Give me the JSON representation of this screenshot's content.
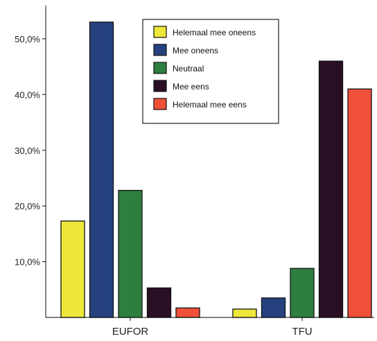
{
  "chart_data": {
    "type": "bar",
    "categories": [
      "EUFOR",
      "TFU"
    ],
    "series": [
      {
        "name": "Helemaal mee oneens",
        "color": "#ede83a",
        "values": [
          17.3,
          1.5
        ]
      },
      {
        "name": "Mee oneens",
        "color": "#25427f",
        "values": [
          53.0,
          3.5
        ]
      },
      {
        "name": "Neutraal",
        "color": "#2e7f3f",
        "values": [
          22.8,
          8.8
        ]
      },
      {
        "name": "Mee eens",
        "color": "#2a0f24",
        "values": [
          5.3,
          46.0
        ]
      },
      {
        "name": "Helemaal mee eens",
        "color": "#f0503a",
        "values": [
          1.7,
          41.0
        ]
      }
    ],
    "yticks": [
      "10,0%",
      "20,0%",
      "30,0%",
      "40,0%",
      "50,0%"
    ],
    "ytick_values": [
      10,
      20,
      30,
      40,
      50
    ],
    "ylim": [
      0,
      56
    ],
    "title": "",
    "xlabel": "",
    "ylabel": "",
    "legend_position": "top-center",
    "grid": false
  }
}
